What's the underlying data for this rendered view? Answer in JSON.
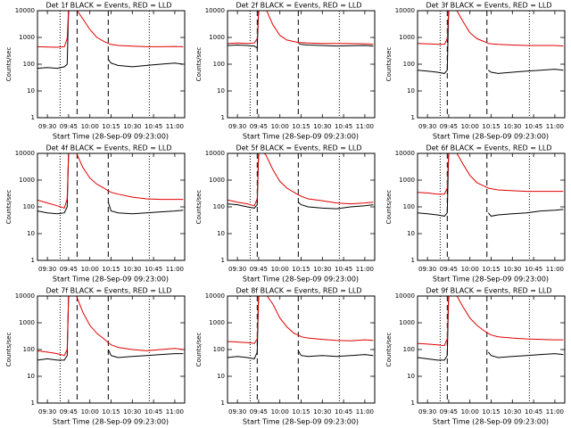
{
  "chart_data": [
    {
      "type": "line",
      "title": "Det 1f BLACK = Events, RED = LLD",
      "xlabel": "Start Time (28-Sep-09 09:23:00)",
      "ylabel": "Counts/sec",
      "x": [
        "09:23",
        "09:30",
        "09:37",
        "09:42",
        "09:44",
        "09:45",
        "09:47",
        "09:50",
        "09:55",
        "10:00",
        "10:05",
        "10:10",
        "10:13",
        "10:15",
        "10:20",
        "10:30",
        "10:40",
        "10:50",
        "11:00",
        "11:06"
      ],
      "xlim": [
        "09:23",
        "11:07"
      ],
      "xticks": [
        "09:30",
        "09:45",
        "10:00",
        "10:15",
        "10:30",
        "10:45",
        "11:00"
      ],
      "ylim": [
        1,
        10000
      ],
      "yticks": [
        1,
        10,
        100,
        1000,
        10000
      ],
      "log_y": true,
      "vlines": [
        {
          "x": "09:39",
          "style": "dotted"
        },
        {
          "x": "09:51",
          "style": "dashed"
        },
        {
          "x": "10:13",
          "style": "dashed"
        },
        {
          "x": "10:42",
          "style": "dotted"
        }
      ],
      "series": [
        {
          "color": "#000000",
          "values": [
            70,
            75,
            70,
            80,
            100,
            12000,
            null,
            null,
            null,
            null,
            null,
            null,
            150,
            110,
            90,
            80,
            90,
            100,
            110,
            100
          ]
        },
        {
          "color": "#e00000",
          "values": [
            450,
            440,
            430,
            450,
            900,
            12000,
            12000,
            12000,
            5000,
            2000,
            1000,
            700,
            600,
            550,
            500,
            470,
            450,
            450,
            460,
            450
          ]
        }
      ]
    },
    {
      "type": "line",
      "title": "Det 2f BLACK = Events, RED = LLD",
      "xlabel": "Start Time (28-Sep-09 09:23:00)",
      "ylabel": "Counts/sec",
      "x": [
        "09:23",
        "09:30",
        "09:37",
        "09:42",
        "09:44",
        "09:45",
        "09:47",
        "09:50",
        "09:55",
        "10:00",
        "10:05",
        "10:10",
        "10:13",
        "10:15",
        "10:20",
        "10:30",
        "10:40",
        "10:50",
        "11:00",
        "11:06"
      ],
      "xlim": [
        "09:23",
        "11:07"
      ],
      "xticks": [
        "09:30",
        "09:45",
        "10:00",
        "10:15",
        "10:30",
        "10:45",
        "11:00"
      ],
      "ylim": [
        1,
        10000
      ],
      "yticks": [
        1,
        10,
        100,
        1000,
        10000
      ],
      "log_y": true,
      "vlines": [
        {
          "x": "09:39",
          "style": "dotted"
        },
        {
          "x": "09:44",
          "style": "dashed"
        },
        {
          "x": "10:13",
          "style": "dashed"
        },
        {
          "x": "10:42",
          "style": "dotted"
        }
      ],
      "series": [
        {
          "color": "#000000",
          "values": [
            500,
            520,
            500,
            480,
            400,
            12000,
            null,
            null,
            null,
            null,
            null,
            null,
            600,
            550,
            520,
            500,
            480,
            490,
            500,
            480
          ]
        },
        {
          "color": "#e00000",
          "values": [
            600,
            620,
            600,
            620,
            900,
            12000,
            12000,
            12000,
            3000,
            1200,
            800,
            700,
            650,
            640,
            620,
            600,
            600,
            590,
            580,
            560
          ]
        }
      ]
    },
    {
      "type": "line",
      "title": "Det 3f BLACK = Events, RED = LLD",
      "xlabel": "Start Time (28-Sep-09 09:23:00)",
      "ylabel": "Counts/sec",
      "x": [
        "09:23",
        "09:30",
        "09:37",
        "09:42",
        "09:44",
        "09:45",
        "09:47",
        "09:50",
        "09:55",
        "10:00",
        "10:05",
        "10:10",
        "10:13",
        "10:15",
        "10:20",
        "10:30",
        "10:40",
        "10:50",
        "11:00",
        "11:06"
      ],
      "xlim": [
        "09:23",
        "11:07"
      ],
      "xticks": [
        "09:30",
        "09:45",
        "10:00",
        "10:15",
        "10:30",
        "10:45",
        "11:00"
      ],
      "ylim": [
        1,
        10000
      ],
      "yticks": [
        1,
        10,
        100,
        1000,
        10000
      ],
      "log_y": true,
      "vlines": [
        {
          "x": "09:39",
          "style": "dotted"
        },
        {
          "x": "09:44",
          "style": "dashed"
        },
        {
          "x": "10:12",
          "style": "dashed"
        },
        {
          "x": "10:42",
          "style": "dotted"
        }
      ],
      "series": [
        {
          "color": "#000000",
          "values": [
            60,
            55,
            50,
            45,
            60,
            12000,
            null,
            null,
            null,
            null,
            null,
            null,
            60,
            50,
            45,
            50,
            55,
            60,
            65,
            60
          ]
        },
        {
          "color": "#e00000",
          "values": [
            600,
            580,
            560,
            550,
            900,
            12000,
            12000,
            12000,
            4000,
            1500,
            900,
            700,
            600,
            580,
            550,
            520,
            500,
            500,
            500,
            480
          ]
        }
      ]
    },
    {
      "type": "line",
      "title": "Det 4f BLACK = Events, RED = LLD",
      "xlabel": "Start Time (28-Sep-09 09:23:00)",
      "ylabel": "Counts/sec",
      "x": [
        "09:23",
        "09:30",
        "09:37",
        "09:42",
        "09:44",
        "09:45",
        "09:47",
        "09:50",
        "09:55",
        "10:00",
        "10:05",
        "10:10",
        "10:13",
        "10:15",
        "10:20",
        "10:30",
        "10:40",
        "10:50",
        "11:00",
        "11:06"
      ],
      "xlim": [
        "09:23",
        "11:07"
      ],
      "xticks": [
        "09:30",
        "09:45",
        "10:00",
        "10:15",
        "10:30",
        "10:45",
        "11:00"
      ],
      "ylim": [
        1,
        10000
      ],
      "yticks": [
        1,
        10,
        100,
        1000,
        10000
      ],
      "log_y": true,
      "vlines": [
        {
          "x": "09:39",
          "style": "dotted"
        },
        {
          "x": "09:51",
          "style": "dashed"
        },
        {
          "x": "10:13",
          "style": "dashed"
        },
        {
          "x": "10:42",
          "style": "dotted"
        }
      ],
      "series": [
        {
          "color": "#000000",
          "values": [
            70,
            60,
            55,
            60,
            100,
            12000,
            null,
            null,
            null,
            null,
            null,
            null,
            150,
            70,
            60,
            55,
            60,
            65,
            70,
            75
          ]
        },
        {
          "color": "#e00000",
          "values": [
            180,
            140,
            110,
            90,
            200,
            12000,
            12000,
            12000,
            3000,
            1200,
            700,
            500,
            400,
            350,
            300,
            230,
            200,
            190,
            190,
            190
          ]
        }
      ]
    },
    {
      "type": "line",
      "title": "Det 5f BLACK = Events, RED = LLD",
      "xlabel": "Start Time (28-Sep-09 09:23:00)",
      "ylabel": "Counts/sec",
      "x": [
        "09:23",
        "09:30",
        "09:37",
        "09:42",
        "09:44",
        "09:45",
        "09:47",
        "09:50",
        "09:55",
        "10:00",
        "10:05",
        "10:10",
        "10:13",
        "10:15",
        "10:20",
        "10:30",
        "10:40",
        "10:50",
        "11:00",
        "11:06"
      ],
      "xlim": [
        "09:23",
        "11:07"
      ],
      "xticks": [
        "09:30",
        "09:45",
        "10:00",
        "10:15",
        "10:30",
        "10:45",
        "11:00"
      ],
      "ylim": [
        1,
        10000
      ],
      "yticks": [
        1,
        10,
        100,
        1000,
        10000
      ],
      "log_y": true,
      "vlines": [
        {
          "x": "09:39",
          "style": "dotted"
        },
        {
          "x": "09:44",
          "style": "dashed"
        },
        {
          "x": "10:13",
          "style": "dashed"
        },
        {
          "x": "10:42",
          "style": "dotted"
        }
      ],
      "series": [
        {
          "color": "#000000",
          "values": [
            130,
            120,
            100,
            90,
            120,
            12000,
            null,
            null,
            null,
            null,
            null,
            null,
            150,
            120,
            100,
            90,
            85,
            100,
            110,
            120
          ]
        },
        {
          "color": "#e00000",
          "values": [
            180,
            150,
            130,
            110,
            200,
            12000,
            12000,
            9000,
            2500,
            900,
            500,
            350,
            280,
            250,
            200,
            170,
            140,
            130,
            140,
            150
          ]
        }
      ]
    },
    {
      "type": "line",
      "title": "Det 6f BLACK = Events, RED = LLD",
      "xlabel": "Start Time (28-Sep-09 09:23:00)",
      "ylabel": "Counts/sec",
      "x": [
        "09:23",
        "09:30",
        "09:37",
        "09:42",
        "09:44",
        "09:45",
        "09:47",
        "09:50",
        "09:55",
        "10:00",
        "10:05",
        "10:10",
        "10:13",
        "10:15",
        "10:20",
        "10:30",
        "10:40",
        "10:50",
        "11:00",
        "11:06"
      ],
      "xlim": [
        "09:23",
        "11:07"
      ],
      "xticks": [
        "09:30",
        "09:45",
        "10:00",
        "10:15",
        "10:30",
        "10:45",
        "11:00"
      ],
      "ylim": [
        1,
        10000
      ],
      "yticks": [
        1,
        10,
        100,
        1000,
        10000
      ],
      "log_y": true,
      "vlines": [
        {
          "x": "09:39",
          "style": "dotted"
        },
        {
          "x": "09:44",
          "style": "dashed"
        },
        {
          "x": "10:12",
          "style": "dashed"
        },
        {
          "x": "10:42",
          "style": "dotted"
        }
      ],
      "series": [
        {
          "color": "#000000",
          "values": [
            60,
            55,
            50,
            45,
            60,
            12000,
            null,
            null,
            null,
            null,
            null,
            null,
            60,
            45,
            50,
            55,
            60,
            70,
            75,
            80
          ]
        },
        {
          "color": "#e00000",
          "values": [
            350,
            330,
            300,
            300,
            500,
            12000,
            12000,
            12000,
            4000,
            1500,
            800,
            600,
            500,
            480,
            430,
            400,
            380,
            380,
            380,
            380
          ]
        }
      ]
    },
    {
      "type": "line",
      "title": "Det 7f BLACK = Events, RED = LLD",
      "xlabel": "Start Time (28-Sep-09 09:23:00)",
      "ylabel": "Counts/sec",
      "x": [
        "09:23",
        "09:30",
        "09:37",
        "09:42",
        "09:44",
        "09:45",
        "09:47",
        "09:50",
        "09:55",
        "10:00",
        "10:05",
        "10:10",
        "10:13",
        "10:15",
        "10:20",
        "10:30",
        "10:40",
        "10:50",
        "11:00",
        "11:06"
      ],
      "xlim": [
        "09:23",
        "11:07"
      ],
      "xticks": [
        "09:30",
        "09:45",
        "10:00",
        "10:15",
        "10:30",
        "10:45",
        "11:00"
      ],
      "ylim": [
        1,
        10000
      ],
      "yticks": [
        1,
        10,
        100,
        1000,
        10000
      ],
      "log_y": true,
      "vlines": [
        {
          "x": "09:39",
          "style": "dotted"
        },
        {
          "x": "09:51",
          "style": "dashed"
        },
        {
          "x": "10:13",
          "style": "dashed"
        },
        {
          "x": "10:42",
          "style": "dotted"
        }
      ],
      "series": [
        {
          "color": "#000000",
          "values": [
            40,
            45,
            40,
            40,
            60,
            12000,
            null,
            null,
            null,
            null,
            null,
            null,
            100,
            60,
            50,
            55,
            60,
            65,
            70,
            70
          ]
        },
        {
          "color": "#e00000",
          "values": [
            90,
            80,
            70,
            60,
            100,
            12000,
            12000,
            12000,
            2500,
            800,
            400,
            250,
            180,
            150,
            120,
            100,
            90,
            100,
            110,
            100
          ]
        }
      ]
    },
    {
      "type": "line",
      "title": "Det 8f BLACK = Events, RED = LLD",
      "xlabel": "Start Time (28-Sep-09 09:23:00)",
      "ylabel": "Counts/sec",
      "x": [
        "09:23",
        "09:30",
        "09:37",
        "09:42",
        "09:44",
        "09:45",
        "09:47",
        "09:50",
        "09:55",
        "10:00",
        "10:05",
        "10:10",
        "10:13",
        "10:15",
        "10:20",
        "10:30",
        "10:40",
        "10:50",
        "11:00",
        "11:06"
      ],
      "xlim": [
        "09:23",
        "11:07"
      ],
      "xticks": [
        "09:30",
        "09:45",
        "10:00",
        "10:15",
        "10:30",
        "10:45",
        "11:00"
      ],
      "ylim": [
        1,
        10000
      ],
      "yticks": [
        1,
        10,
        100,
        1000,
        10000
      ],
      "log_y": true,
      "vlines": [
        {
          "x": "09:39",
          "style": "dotted"
        },
        {
          "x": "09:44",
          "style": "dashed"
        },
        {
          "x": "10:13",
          "style": "dashed"
        },
        {
          "x": "10:42",
          "style": "dotted"
        }
      ],
      "series": [
        {
          "color": "#000000",
          "values": [
            50,
            55,
            50,
            45,
            80,
            12000,
            null,
            null,
            null,
            null,
            null,
            null,
            90,
            60,
            55,
            60,
            55,
            60,
            65,
            60
          ]
        },
        {
          "color": "#e00000",
          "values": [
            200,
            190,
            180,
            170,
            250,
            12000,
            12000,
            12000,
            5000,
            1500,
            700,
            400,
            350,
            300,
            270,
            240,
            220,
            210,
            230,
            220
          ]
        }
      ]
    },
    {
      "type": "line",
      "title": "Det 9f BLACK = Events, RED = LLD",
      "xlabel": "Start Time (28-Sep-09 09:23:00)",
      "ylabel": "Counts/sec",
      "x": [
        "09:23",
        "09:30",
        "09:37",
        "09:42",
        "09:44",
        "09:45",
        "09:47",
        "09:50",
        "09:55",
        "10:00",
        "10:05",
        "10:10",
        "10:13",
        "10:15",
        "10:20",
        "10:30",
        "10:40",
        "10:50",
        "11:00",
        "11:06"
      ],
      "xlim": [
        "09:23",
        "11:07"
      ],
      "xticks": [
        "09:30",
        "09:45",
        "10:00",
        "10:15",
        "10:30",
        "10:45",
        "11:00"
      ],
      "ylim": [
        1,
        10000
      ],
      "yticks": [
        1,
        10,
        100,
        1000,
        10000
      ],
      "log_y": true,
      "vlines": [
        {
          "x": "09:39",
          "style": "dotted"
        },
        {
          "x": "09:44",
          "style": "dashed"
        },
        {
          "x": "10:12",
          "style": "dashed"
        },
        {
          "x": "10:42",
          "style": "dotted"
        }
      ],
      "series": [
        {
          "color": "#000000",
          "values": [
            50,
            45,
            40,
            40,
            60,
            12000,
            null,
            null,
            null,
            null,
            null,
            null,
            80,
            60,
            50,
            55,
            60,
            65,
            70,
            65
          ]
        },
        {
          "color": "#e00000",
          "values": [
            170,
            160,
            150,
            140,
            250,
            12000,
            12000,
            12000,
            4000,
            1500,
            800,
            500,
            400,
            350,
            300,
            270,
            250,
            240,
            230,
            230
          ]
        }
      ]
    }
  ]
}
